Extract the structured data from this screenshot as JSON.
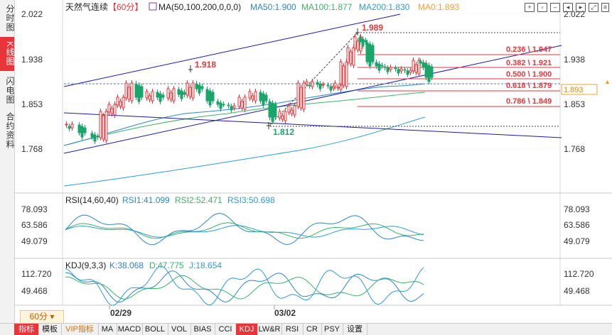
{
  "side_tabs": [
    {
      "label": "分时图",
      "active": false
    },
    {
      "label": "K线图",
      "active": true
    },
    {
      "label": "闪电图",
      "active": false
    },
    {
      "label": "合约资料",
      "active": false
    }
  ],
  "main_panel": {
    "symbol": "天然气连续",
    "period_tag": "【60分】",
    "ma_params": "MA(50,100,200,0,0,0)",
    "ma50": "MA50:1.900",
    "ma100": "MA100:1.877",
    "ma200": "MA200:1.830",
    "ma0": "MA0:1.893",
    "y_ticks": [
      "2.022",
      "1.938",
      "1.853",
      "1.768"
    ],
    "last_price": "1.893",
    "high_label": "1.989",
    "mid_high_label": "1.918",
    "low_label": "1.812",
    "fib_levels": [
      {
        "label": "0.236 \\ 1.947"
      },
      {
        "label": "0.382 \\ 1.921"
      },
      {
        "label": "0.500 \\ 1.900"
      },
      {
        "label": "0.618 \\ 1.879"
      },
      {
        "label": "0.786 \\ 1.849"
      }
    ]
  },
  "rsi_panel": {
    "title": "RSI(14,60,40)",
    "rsi1": "RSI1:41.099",
    "rsi2": "RSI2:52.471",
    "rsi3": "RSI3:50.698",
    "y_ticks": [
      "78.093",
      "63.586",
      "49.079"
    ]
  },
  "kdj_panel": {
    "title": "KDJ(9,3,3)",
    "k": "K:38.068",
    "d": "D:47.775",
    "j": "J:18.654",
    "y_ticks": [
      "112.720",
      "49.468"
    ]
  },
  "x_axis": {
    "labels": [
      "02/29",
      "03/02"
    ]
  },
  "period_button": "60分",
  "bottom_tabs": [
    {
      "label": "指标",
      "active": true
    },
    {
      "label": "模板"
    },
    {
      "label": "VIP指标",
      "vip": true
    },
    {
      "label": "MA"
    },
    {
      "label": "MACD"
    },
    {
      "label": "BOLL"
    },
    {
      "label": "VOL"
    },
    {
      "label": "BIAS"
    },
    {
      "label": "CCI"
    },
    {
      "label": "KDJ",
      "active": true
    },
    {
      "label": "LW&R"
    },
    {
      "label": "RSI"
    },
    {
      "label": "CR"
    },
    {
      "label": "PSY"
    },
    {
      "label": "设置"
    }
  ],
  "colors": {
    "up": "#e8353a",
    "down": "#1aa66a",
    "ma50": "#2f86c9",
    "ma100": "#3ab36b",
    "ma200": "#2f9cd8",
    "ma0": "#f0a030",
    "trend": "#1a1aa8",
    "fib": "#e8353a"
  }
}
